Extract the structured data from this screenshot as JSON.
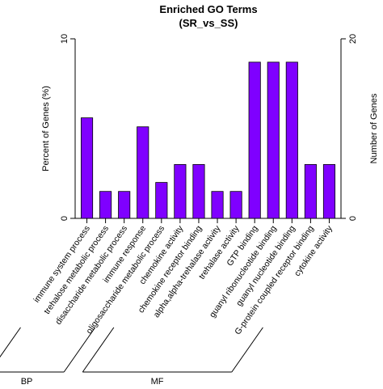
{
  "chart_data": {
    "type": "bar",
    "title": "Enriched GO Terms",
    "subtitle": "(SR_vs_SS)",
    "ylabel": "Percent of Genes (%)",
    "ylabel_right": "Number of Genes",
    "ylim": [
      0,
      10
    ],
    "ylim_right": [
      0,
      20
    ],
    "yticks": [
      "0",
      "10"
    ],
    "yticks_right": [
      "0",
      "20"
    ],
    "bar_color": "#7f00ff",
    "categories": [
      "immune system process",
      "trehalose metabolic process",
      "disaccharide metabolic process",
      "immune response",
      "oligosaccharide metabolic process",
      "chemokine activity",
      "chemokine receptor binding",
      "alpha,alpha-trehalase activity",
      "trehalase activity",
      "GTP binding",
      "guanyl ribonucleotide binding",
      "guanyl nucleotide binding",
      "G-protein coupled receptor binding",
      "cytokine activity"
    ],
    "values": [
      5.6,
      1.5,
      1.5,
      5.1,
      2.0,
      3.0,
      3.0,
      1.5,
      1.5,
      8.7,
      8.7,
      8.7,
      3.0,
      3.0
    ],
    "groups": [
      {
        "name": "BP",
        "start": 0,
        "end": 4
      },
      {
        "name": "MF",
        "start": 5,
        "end": 13
      }
    ]
  }
}
